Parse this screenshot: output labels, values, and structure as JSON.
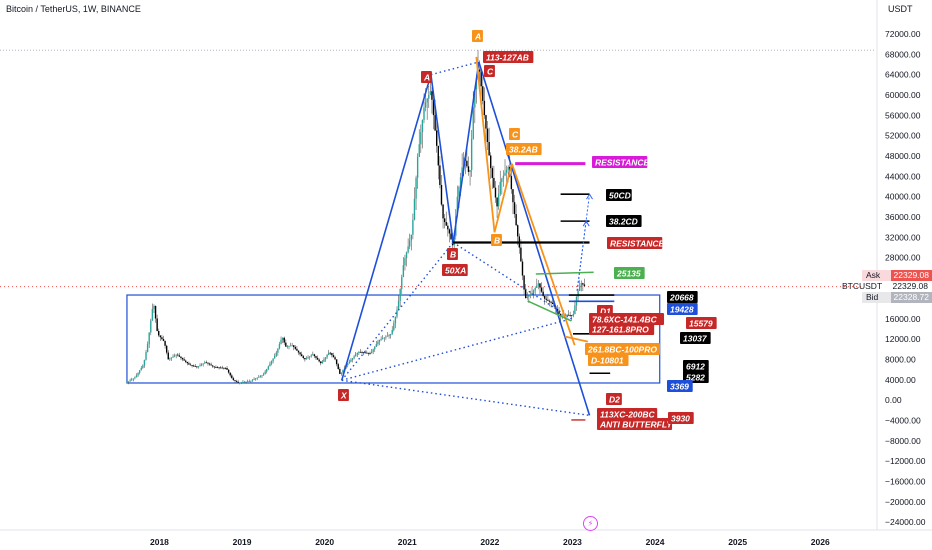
{
  "header": {
    "title": "Bitcoin / TetherUS, 1W, BINANCE",
    "unit": "USDT"
  },
  "price_scale": {
    "ask_label": "Ask",
    "ask_value": "22329.08",
    "symbol_label": "BTCUSDT",
    "symbol_value": "22329.08",
    "bid_label": "Bid",
    "bid_value": "22328.72"
  },
  "colors": {
    "candle_up": "#26a69a",
    "candle_down": "#000000",
    "candle_wick": "#555555",
    "blue": "#1e4fd8",
    "orange": "#f7931a",
    "red_label": "#c62828",
    "magenta": "#d81bd8",
    "green": "#4caf50",
    "black_label": "#000000",
    "range_box": "#1e4fd8"
  },
  "chart_data": {
    "type": "candlestick",
    "timeframe": "1W",
    "ylim": [
      -24000,
      72000
    ],
    "y_ticks": [
      "72000.00",
      "68000.00",
      "64000.00",
      "60000.00",
      "56000.00",
      "52000.00",
      "48000.00",
      "44000.00",
      "40000.00",
      "36000.00",
      "32000.00",
      "28000.00",
      "24000.00",
      "20000.00",
      "16000.00",
      "12000.00",
      "8000.00",
      "4000.00",
      "0.00",
      "−4000.00",
      "−8000.00",
      "−12000.00",
      "−16000.00",
      "−20000.00",
      "−24000.00"
    ],
    "x_ticks": [
      "2018",
      "2019",
      "2020",
      "2021",
      "2022",
      "2023",
      "2024",
      "2025",
      "2026"
    ],
    "price_path": [
      [
        2017.6,
        3500
      ],
      [
        2017.7,
        4500
      ],
      [
        2017.8,
        7000
      ],
      [
        2017.85,
        11000
      ],
      [
        2017.92,
        19400
      ],
      [
        2017.97,
        13000
      ],
      [
        2018.05,
        11500
      ],
      [
        2018.1,
        8000
      ],
      [
        2018.2,
        9000
      ],
      [
        2018.35,
        7000
      ],
      [
        2018.45,
        6500
      ],
      [
        2018.55,
        7500
      ],
      [
        2018.65,
        6500
      ],
      [
        2018.8,
        6300
      ],
      [
        2018.88,
        4000
      ],
      [
        2018.95,
        3400
      ],
      [
        2019.1,
        3800
      ],
      [
        2019.25,
        5000
      ],
      [
        2019.4,
        9000
      ],
      [
        2019.48,
        12500
      ],
      [
        2019.52,
        10500
      ],
      [
        2019.6,
        10800
      ],
      [
        2019.75,
        8000
      ],
      [
        2019.85,
        9000
      ],
      [
        2019.95,
        7200
      ],
      [
        2020.05,
        9500
      ],
      [
        2020.12,
        8000
      ],
      [
        2020.18,
        5000
      ],
      [
        2020.25,
        6800
      ],
      [
        2020.4,
        9500
      ],
      [
        2020.55,
        9200
      ],
      [
        2020.65,
        11800
      ],
      [
        2020.8,
        13000
      ],
      [
        2020.88,
        18500
      ],
      [
        2020.95,
        27000
      ],
      [
        2021.05,
        33000
      ],
      [
        2021.12,
        48000
      ],
      [
        2021.2,
        58000
      ],
      [
        2021.28,
        61000
      ],
      [
        2021.35,
        50000
      ],
      [
        2021.42,
        36000
      ],
      [
        2021.5,
        33000
      ],
      [
        2021.55,
        30000
      ],
      [
        2021.6,
        40000
      ],
      [
        2021.68,
        48000
      ],
      [
        2021.75,
        44000
      ],
      [
        2021.8,
        60000
      ],
      [
        2021.86,
        66000
      ],
      [
        2021.92,
        57000
      ],
      [
        2022.0,
        46000
      ],
      [
        2022.08,
        38000
      ],
      [
        2022.12,
        43000
      ],
      [
        2022.22,
        46000
      ],
      [
        2022.28,
        38000
      ],
      [
        2022.35,
        30000
      ],
      [
        2022.42,
        20000
      ],
      [
        2022.5,
        21000
      ],
      [
        2022.58,
        23000
      ],
      [
        2022.65,
        20000
      ],
      [
        2022.75,
        19000
      ],
      [
        2022.85,
        16500
      ],
      [
        2022.92,
        16800
      ],
      [
        2023.0,
        16600
      ],
      [
        2023.05,
        21000
      ],
      [
        2023.1,
        23000
      ],
      [
        2023.15,
        22300
      ]
    ],
    "annotations": {
      "pattern_points": [
        {
          "label": "X",
          "x": 2020.2,
          "y": 3900,
          "color": "red",
          "pos": "below"
        },
        {
          "label": "A",
          "x": 2021.28,
          "y": 64000,
          "color": "red",
          "pos": "above"
        },
        {
          "label": "B",
          "x": 2021.55,
          "y": 29500,
          "color": "red",
          "pos": "below"
        },
        {
          "label": "C",
          "x": 2021.86,
          "y": 67500,
          "color": "red",
          "pos": "right"
        },
        {
          "label": "A",
          "x": 2021.83,
          "y": 70000,
          "color": "orange",
          "pos": "above"
        },
        {
          "label": "C",
          "x": 2022.26,
          "y": 48000,
          "color": "orange",
          "pos": "above"
        },
        {
          "label": "B",
          "x": 2022.05,
          "y": 33500,
          "color": "orange",
          "pos": "below"
        },
        {
          "label": "D1",
          "x": 2023.0,
          "y": 17500,
          "color": "red",
          "pos": "above"
        },
        {
          "label": "D2",
          "x": 2023.2,
          "y": -2000,
          "color": "red",
          "pos": "above"
        }
      ],
      "text_labels": [
        {
          "text": "113-127AB",
          "color": "red"
        },
        {
          "text": "38.2AB",
          "color": "orange"
        },
        {
          "text": "50XA",
          "color": "red"
        },
        {
          "text": "RESISTANCE",
          "color": "magenta"
        },
        {
          "text": "RESISTANCE",
          "color": "red"
        },
        {
          "text": "50CD",
          "color": "black"
        },
        {
          "text": "38.2CD",
          "color": "black"
        },
        {
          "text": "25135",
          "color": "green"
        },
        {
          "text": "20668",
          "color": "black"
        },
        {
          "text": "19428",
          "color": "blue"
        },
        {
          "text": "78.6XC-141.4BC",
          "color": "red"
        },
        {
          "text": "127-161.8PRO",
          "color": "red"
        },
        {
          "text": "15579",
          "color": "red"
        },
        {
          "text": "13037",
          "color": "black"
        },
        {
          "text": "261.8BC-100PRO",
          "color": "orange"
        },
        {
          "text": "D-10801",
          "color": "orange"
        },
        {
          "text": "6912",
          "color": "black"
        },
        {
          "text": "5282",
          "color": "black"
        },
        {
          "text": "3369",
          "color": "blue"
        },
        {
          "text": "113XC-200BC",
          "color": "red"
        },
        {
          "text": "ANTI BUTTERFLY",
          "color": "red"
        },
        {
          "text": "3930",
          "color": "red"
        }
      ]
    }
  }
}
